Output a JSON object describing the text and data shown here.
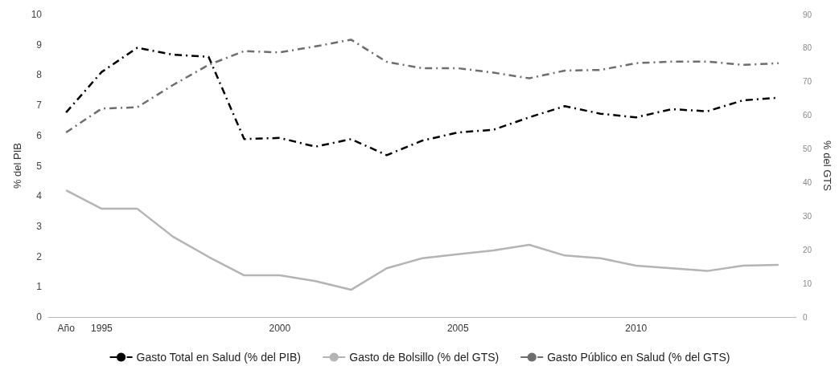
{
  "chart_data": {
    "type": "line",
    "ylabel": "% del PIB",
    "y2label": "% del GTS",
    "categories": [
      "Año",
      "1995",
      null,
      null,
      null,
      null,
      "2000",
      null,
      null,
      null,
      null,
      "2005",
      null,
      null,
      null,
      null,
      "2010",
      null,
      null,
      null,
      null
    ],
    "series": [
      {
        "name": "Gasto Total en Salud (% del PIB)",
        "color": "#000000",
        "line_style": "dashed",
        "values": [
          6.76,
          8.1,
          8.9,
          8.67,
          8.6,
          5.88,
          5.92,
          5.63,
          5.88,
          5.35,
          5.83,
          6.1,
          6.19,
          6.6,
          6.97,
          6.72,
          6.6,
          6.87,
          6.8,
          7.16,
          7.25
        ]
      },
      {
        "name": "Gasto de Bolsillo (% del GTS)",
        "color": "#b4b4b4",
        "line_style": "solid",
        "axis": "y2",
        "values": [
          37.7,
          32.2,
          32.2,
          23.9,
          17.9,
          12.4,
          12.4,
          10.7,
          8.1,
          14.5,
          17.5,
          18.7,
          19.8,
          21.5,
          18.3,
          17.5,
          15.3,
          14.5,
          13.7,
          15.3,
          15.5
        ]
      },
      {
        "name": "Gasto Público en Salud (% del GTS)",
        "color": "#6e6e6e",
        "line_style": "dashed",
        "axis": "y2",
        "values": [
          54.9,
          62,
          62.4,
          69,
          75,
          79.1,
          78.7,
          80.5,
          82.5,
          75.9,
          74,
          74,
          72.7,
          71,
          73.3,
          73.5,
          75.5,
          76,
          76,
          75,
          75.5
        ]
      }
    ],
    "ylim": [
      0,
      10
    ],
    "yticks": [
      0,
      1,
      2,
      3,
      4,
      5,
      6,
      7,
      8,
      9,
      10
    ],
    "y2lim": [
      0,
      90
    ],
    "y2ticks": [
      0,
      10,
      20,
      30,
      40,
      50,
      60,
      70,
      80,
      90
    ],
    "grid": false,
    "legend": "bottom",
    "marker": "none"
  }
}
